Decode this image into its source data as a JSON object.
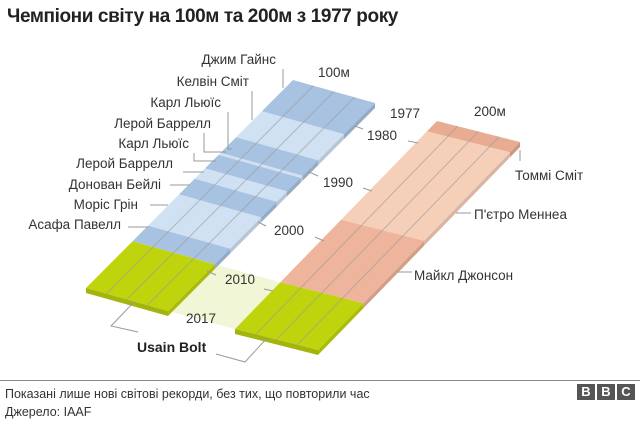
{
  "title": "Чемпіони світу на 100м та 200м з 1977 року",
  "timeline": {
    "start": 1977,
    "end": 2017
  },
  "year_labels": {
    "y1977": "1977",
    "y1980": "1980",
    "y1990": "1990",
    "y2000": "2000",
    "y2010": "2010",
    "y2017": "2017"
  },
  "tracks": {
    "m100": {
      "label": "100м",
      "records": [
        {
          "name": "Джим Гайнс",
          "from": 1977,
          "to": 1983,
          "shade": "dark"
        },
        {
          "name": "Келвін Сміт",
          "from": 1983,
          "to": 1988,
          "shade": "light"
        },
        {
          "name": "Карл Льюїс",
          "from": 1988,
          "to": 1991,
          "shade": "dark"
        },
        {
          "name": "Лерой Баррелл",
          "from": 1991,
          "to": 1991.4,
          "shade": "light"
        },
        {
          "name": "Карл Льюїс",
          "from": 1991.4,
          "to": 1994,
          "shade": "dark"
        },
        {
          "name": "Лерой Баррелл",
          "from": 1994,
          "to": 1996,
          "shade": "light"
        },
        {
          "name": "Донован Бейлі",
          "from": 1996,
          "to": 1999,
          "shade": "dark"
        },
        {
          "name": "Моріс Грін",
          "from": 1999,
          "to": 2005,
          "shade": "light"
        },
        {
          "name": "Асафа Павелл",
          "from": 2005,
          "to": 2008,
          "shade": "dark"
        },
        {
          "name": "Usain Bolt",
          "from": 2008,
          "to": 2017,
          "shade": "bolt"
        }
      ]
    },
    "m200": {
      "label": "200м",
      "records": [
        {
          "name": "Томмі Сміт",
          "from": 1977,
          "to": 1979,
          "shade": "dark"
        },
        {
          "name": "П'єтро Меннеа",
          "from": 1979,
          "to": 1996,
          "shade": "light"
        },
        {
          "name": "Майкл Джонсон",
          "from": 1996,
          "to": 2008,
          "shade": "mid"
        },
        {
          "name": "Usain Bolt",
          "from": 2008,
          "to": 2017,
          "shade": "bolt"
        }
      ]
    }
  },
  "bolt_label": "Usain Bolt",
  "colors": {
    "m100_dark": "#a8c2e2",
    "m100_light": "#cfe1f3",
    "m200_dark": "#e8ac93",
    "m200_light": "#f6cfb9",
    "m200_mid": "#eeb59c",
    "bolt": "#c0d40e",
    "bolt_overlay": "#f1f6d6",
    "lane": "#ffffff"
  },
  "footer": {
    "note": "Показані лише нові світові рекорди, без тих, що повторили час",
    "source": "Джерело: IAAF",
    "logo": [
      "B",
      "B",
      "C"
    ]
  }
}
